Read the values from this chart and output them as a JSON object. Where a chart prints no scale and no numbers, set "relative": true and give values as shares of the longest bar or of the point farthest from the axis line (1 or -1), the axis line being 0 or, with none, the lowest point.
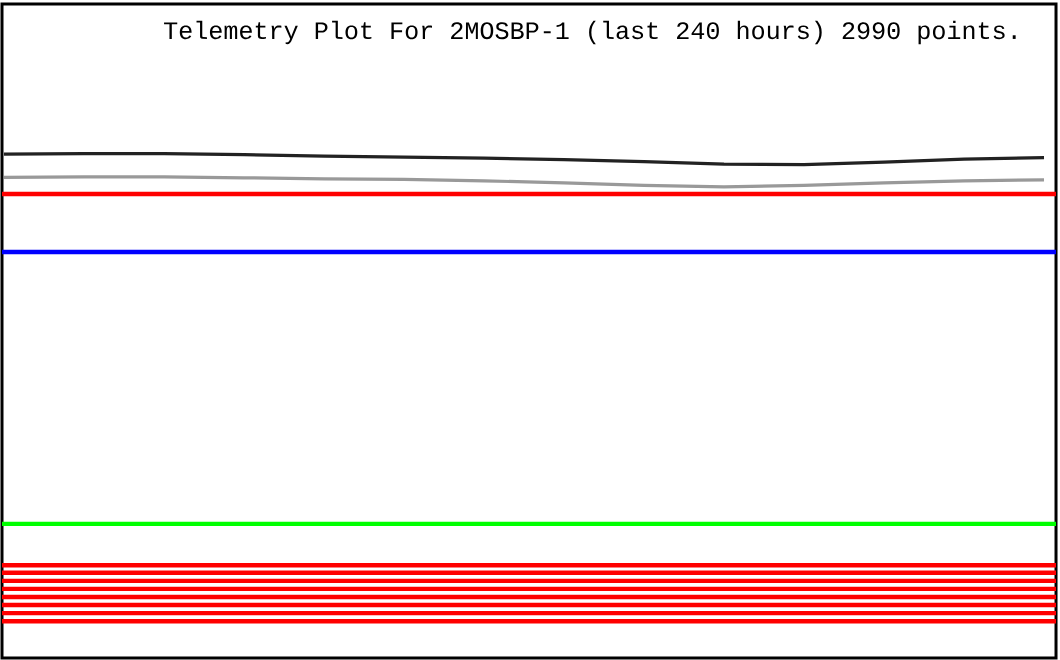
{
  "chart_data": {
    "type": "line",
    "title": "Telemetry Plot For 2MOSBP-1 (last 240 hours) 2990 points.",
    "relative": true,
    "categories": [
      null,
      null,
      null,
      null,
      null,
      null,
      null,
      null,
      null,
      null,
      null,
      null,
      null,
      null
    ],
    "series": [
      {
        "color": "#222222",
        "values": [
          0.999,
          1,
          1,
          0.998,
          0.995,
          0.993,
          0.991,
          0.988,
          0.984,
          0.979,
          0.978,
          0.983,
          0.989,
          0.992
        ]
      },
      {
        "color": "#999999",
        "values": [
          0.953,
          0.954,
          0.954,
          0.952,
          0.95,
          0.949,
          0.946,
          0.942,
          0.937,
          0.934,
          0.937,
          0.942,
          0.946,
          0.948
        ]
      }
    ],
    "ref_lines": [
      {
        "axis": "y",
        "value": 0.92,
        "color": "#ff0000"
      },
      {
        "axis": "y",
        "value": 0.805,
        "color": "#0000ff"
      },
      {
        "axis": "y",
        "value": 0.266,
        "color": "#00ff00"
      },
      {
        "axis": "y",
        "value": 0.184,
        "color": "#ff0000"
      },
      {
        "axis": "y",
        "value": 0.169,
        "color": "#ff0000"
      },
      {
        "axis": "y",
        "value": 0.153,
        "color": "#ff0000"
      },
      {
        "axis": "y",
        "value": 0.137,
        "color": "#ff0000"
      },
      {
        "axis": "y",
        "value": 0.121,
        "color": "#ff0000"
      },
      {
        "axis": "y",
        "value": 0.105,
        "color": "#ff0000"
      },
      {
        "axis": "y",
        "value": 0.089,
        "color": "#ff0000"
      },
      {
        "axis": "y",
        "value": 0.073,
        "color": "#ff0000"
      }
    ]
  }
}
